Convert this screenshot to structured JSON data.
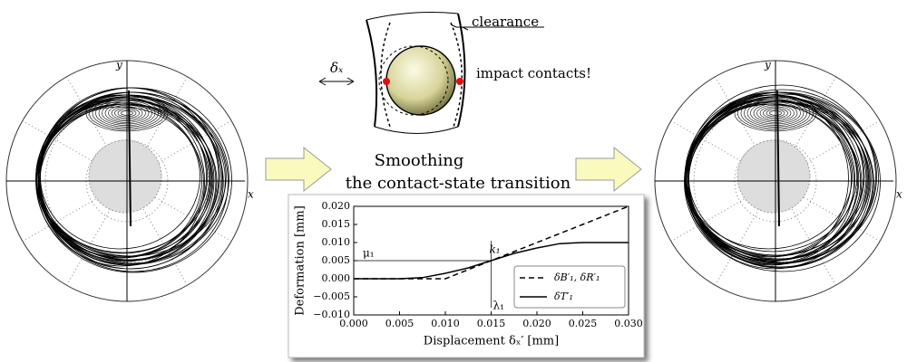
{
  "diagram": {
    "clearance": "clearance",
    "impact": "impact contacts!",
    "delta": "δₓ"
  },
  "caption": [
    "Smoothing",
    "the contact-state transition"
  ],
  "left_orbit": {
    "x_label": "x",
    "y_label": "y"
  },
  "right_orbit": {
    "x_label": "x",
    "y_label": "y"
  },
  "chart_data": {
    "type": "line",
    "xlabel": "Displacement δₓ′ [mm]",
    "ylabel": "Deformation [mm]",
    "x": [
      0,
      0.005,
      0.0075,
      0.01,
      0.0125,
      0.015,
      0.0175,
      0.02,
      0.0225,
      0.025,
      0.03
    ],
    "series": [
      {
        "name": "δB′₁, δR′₁",
        "color": "#000000",
        "dash": true,
        "values": [
          0,
          0,
          0,
          0,
          0.0025,
          0.005,
          0.0075,
          0.01,
          0.0125,
          0.015,
          0.02
        ]
      },
      {
        "name": "δT′₁",
        "color": "#000000",
        "dash": false,
        "values": [
          0,
          0,
          0.0003,
          0.0015,
          0.003,
          0.005,
          0.007,
          0.0085,
          0.0097,
          0.01,
          0.01
        ]
      }
    ],
    "xlim": [
      0,
      0.03
    ],
    "ylim": [
      -0.01,
      0.02
    ],
    "xticks": [
      {
        "value": 0,
        "label": "0.000"
      },
      {
        "value": 0.005,
        "label": "0.005"
      },
      {
        "value": 0.01,
        "label": "0.010"
      },
      {
        "value": 0.015,
        "label": "0.015"
      },
      {
        "value": 0.02,
        "label": "0.020"
      },
      {
        "value": 0.025,
        "label": "0.025"
      },
      {
        "value": 0.03,
        "label": "0.030"
      }
    ],
    "yticks": [
      {
        "value": -0.01,
        "label": "−0.010"
      },
      {
        "value": -0.005,
        "label": "−0.005"
      },
      {
        "value": 0,
        "label": "0.000"
      },
      {
        "value": 0.005,
        "label": "0.005"
      },
      {
        "value": 0.01,
        "label": "0.010"
      },
      {
        "value": 0.015,
        "label": "0.015"
      },
      {
        "value": 0.02,
        "label": "0.020"
      }
    ],
    "annotations": [
      {
        "text": "μ₁",
        "y": 0.005
      },
      {
        "text": "λ₁",
        "x": 0.015
      },
      {
        "text": "k₁",
        "x": 0.015,
        "y": 0.005
      }
    ],
    "legend": "lower right"
  }
}
